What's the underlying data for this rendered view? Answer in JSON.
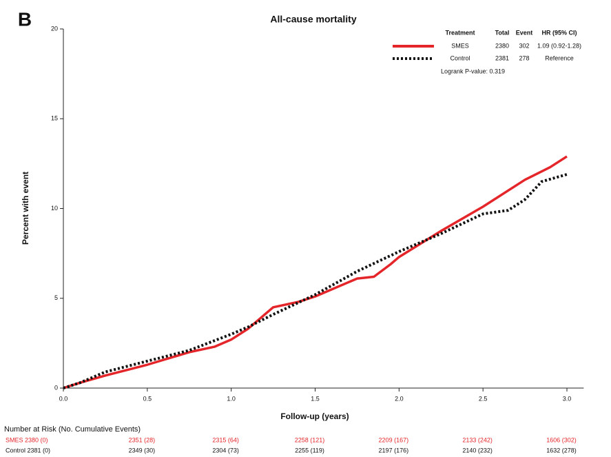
{
  "chart_data": {
    "type": "line",
    "panel_label": "B",
    "title": "All-cause mortality",
    "xlabel": "Follow-up (years)",
    "ylabel": "Percent with event",
    "xlim": [
      0,
      3.1
    ],
    "ylim": [
      0,
      20
    ],
    "xticks": [
      {
        "value": 0,
        "label": "0.0"
      },
      0.5,
      {
        "value": 1,
        "label": "1.0"
      },
      1.5,
      {
        "value": 2,
        "label": "2.0"
      },
      2.5,
      {
        "value": 3,
        "label": "3.0"
      }
    ],
    "yticks": [
      0,
      5,
      10,
      15,
      20
    ],
    "grid": false,
    "legend_position": "upper right",
    "legend_header": [
      "Treatment",
      "Total",
      "Event",
      "HR (95% CI)"
    ],
    "series": [
      {
        "name": "SMES",
        "color": "#e4262b",
        "line_style": "solid",
        "total": 2380,
        "events": 302,
        "hr": "1.09 (0.92-1.28)",
        "x": [
          0,
          0.1,
          0.25,
          0.5,
          0.75,
          0.9,
          1.0,
          1.1,
          1.25,
          1.4,
          1.5,
          1.75,
          1.85,
          1.95,
          2.0,
          2.25,
          2.5,
          2.75,
          2.9,
          3.0
        ],
        "values": [
          0,
          0.3,
          0.7,
          1.3,
          2.0,
          2.3,
          2.7,
          3.3,
          4.5,
          4.8,
          5.1,
          6.1,
          6.2,
          6.9,
          7.3,
          8.75,
          10.1,
          11.6,
          12.3,
          12.9
        ]
      },
      {
        "name": "Control",
        "color": "#111111",
        "line_style": "dotted",
        "total": 2381,
        "events": 278,
        "hr": "Reference",
        "x": [
          0,
          0.1,
          0.25,
          0.5,
          0.75,
          1.0,
          1.1,
          1.25,
          1.5,
          1.75,
          2.0,
          2.25,
          2.5,
          2.65,
          2.75,
          2.85,
          3.0
        ],
        "values": [
          0,
          0.3,
          0.9,
          1.5,
          2.1,
          3.0,
          3.4,
          4.1,
          5.2,
          6.5,
          7.6,
          8.6,
          9.7,
          9.9,
          10.5,
          11.5,
          11.9
        ]
      }
    ],
    "annotation": "Logrank P-value: 0.319",
    "risk_table": {
      "title": "Number at Risk (No. Cumulative Events)",
      "rows": [
        [
          "SMES 2380 (0)",
          "2351 (28)",
          "2315 (64)",
          "2258 (121)",
          "2209 (167)",
          "2133 (242)",
          "1606 (302)"
        ],
        [
          "Control 2381 (0)",
          "2349 (30)",
          "2304 (73)",
          "2255 (119)",
          "2197 (176)",
          "2140 (232)",
          "1632 (278)"
        ]
      ]
    }
  }
}
